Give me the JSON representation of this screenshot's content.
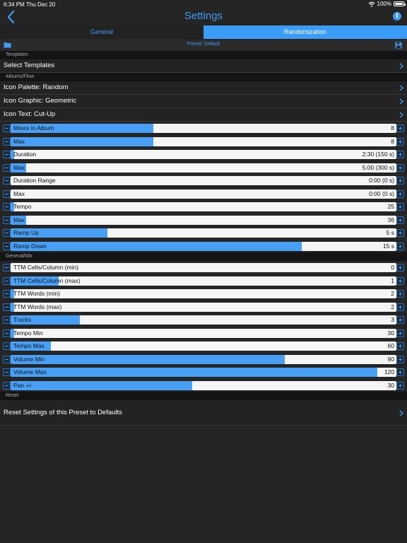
{
  "status_bar": {
    "time": "6:34 PM",
    "date": "Thu Dec 20",
    "battery": "100%"
  },
  "nav": {
    "title": "Settings",
    "back_icon": "chevron-left-icon",
    "info_icon": "info-icon",
    "info_glyph": "i"
  },
  "tabs": [
    {
      "label": "General",
      "selected": false
    },
    {
      "label": "Randomization",
      "selected": true
    }
  ],
  "preset_bar": {
    "label": "Preset: Default",
    "left_icon": "folder-icon",
    "right_icon": "save-icon"
  },
  "sections": {
    "templates": {
      "header": "Templates",
      "rows": [
        {
          "label": "Select Templates"
        }
      ]
    },
    "albums_flow": {
      "header": "Albums/Flow",
      "rows": [
        {
          "label": "Icon Palette: Random"
        },
        {
          "label": "Icon Graphic: Geometric"
        },
        {
          "label": "Icon Text: Cut-Up"
        }
      ],
      "sliders": [
        {
          "label": "Mixes in Album",
          "value": "8",
          "fill": 0.37
        },
        {
          "label": "Max",
          "value": "8",
          "fill": 0.37
        },
        {
          "label": "Duration",
          "value": "2:30 (150 s)",
          "fill": 0.01
        },
        {
          "label": "Max",
          "value": "5:00 (300 s)",
          "fill": 0.04
        },
        {
          "label": "Duration Range",
          "value": "0:00 (0 s)",
          "fill": 0.0
        },
        {
          "label": "Max",
          "value": "0:00 (0 s)",
          "fill": 0.0
        },
        {
          "label": "Tempo",
          "value": "25",
          "fill": 0.01
        },
        {
          "label": "Max",
          "value": "36",
          "fill": 0.04
        },
        {
          "label": "Ramp Up",
          "value": "5 s",
          "fill": 0.25
        },
        {
          "label": "Ramp Down",
          "value": "15 s",
          "fill": 0.755
        }
      ]
    },
    "general_mix": {
      "header": "General/Mix",
      "sliders": [
        {
          "label": "TTM Cells/Column (min)",
          "value": "0",
          "fill": 0.0
        },
        {
          "label": "TTM Cells/Column (max)",
          "value": "1",
          "fill": 0.125
        },
        {
          "label": "TTM Words (min)",
          "value": "2",
          "fill": 0.01
        },
        {
          "label": "TTM Words (max)",
          "value": "2",
          "fill": 0.01
        },
        {
          "label": "Tracks",
          "value": "3",
          "fill": 0.18
        },
        {
          "label": "Tempo Min",
          "value": "30",
          "fill": 0.01
        },
        {
          "label": "Tempo Max",
          "value": "60",
          "fill": 0.105
        },
        {
          "label": "Volume Min",
          "value": "90",
          "fill": 0.71
        },
        {
          "label": "Volume Max",
          "value": "120",
          "fill": 0.95
        },
        {
          "label": "Pan +/-",
          "value": "30",
          "fill": 0.47
        }
      ]
    },
    "reset": {
      "header": "Reset",
      "rows": [
        {
          "label": "Reset Settings of this Preset to Defaults"
        }
      ]
    }
  },
  "colors": {
    "accent": "#3f9bf3",
    "fill": "#48a0f6",
    "background": "#252525"
  }
}
